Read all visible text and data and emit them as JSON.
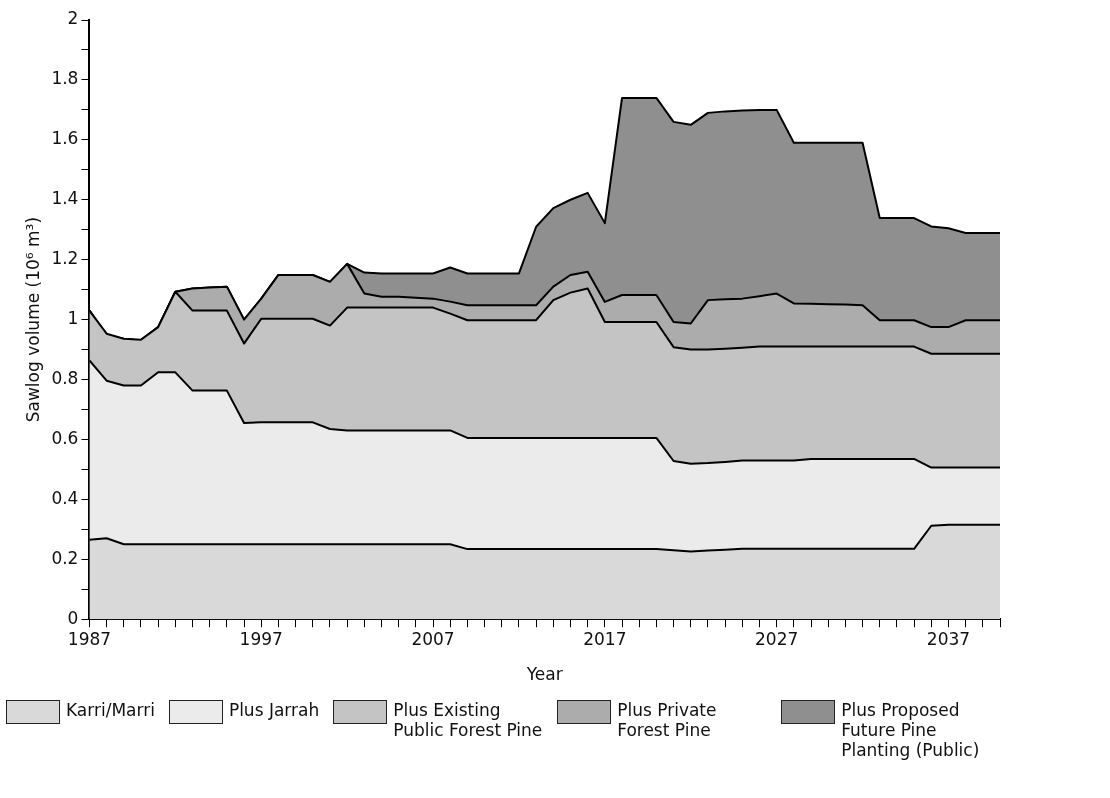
{
  "chart_data": {
    "type": "area",
    "xlabel": "Year",
    "ylabel": "Sawlog volume (10⁶ m³)",
    "x": [
      1987,
      1988,
      1989,
      1990,
      1991,
      1992,
      1993,
      1994,
      1995,
      1996,
      1997,
      1998,
      1999,
      2000,
      2001,
      2002,
      2003,
      2004,
      2005,
      2006,
      2007,
      2008,
      2009,
      2010,
      2011,
      2012,
      2013,
      2014,
      2015,
      2016,
      2017,
      2018,
      2019,
      2020,
      2021,
      2022,
      2023,
      2024,
      2025,
      2026,
      2027,
      2028,
      2029,
      2030,
      2031,
      2032,
      2033,
      2034,
      2035,
      2036,
      2037,
      2038,
      2039,
      2040
    ],
    "series": [
      {
        "name": "Karri/Marri",
        "color": "#d9d9d9",
        "values": [
          0.265,
          0.27,
          0.25,
          0.25,
          0.25,
          0.25,
          0.25,
          0.25,
          0.25,
          0.25,
          0.25,
          0.25,
          0.25,
          0.25,
          0.25,
          0.25,
          0.25,
          0.25,
          0.25,
          0.25,
          0.25,
          0.25,
          0.234,
          0.234,
          0.234,
          0.234,
          0.234,
          0.234,
          0.234,
          0.234,
          0.234,
          0.234,
          0.234,
          0.234,
          0.23,
          0.226,
          0.229,
          0.232,
          0.235,
          0.235,
          0.235,
          0.235,
          0.235,
          0.235,
          0.235,
          0.235,
          0.235,
          0.235,
          0.235,
          0.312,
          0.315,
          0.315,
          0.315,
          0.315
        ]
      },
      {
        "name": "Plus Jarrah",
        "color": "#ebebeb",
        "values": [
          0.864,
          0.796,
          0.78,
          0.78,
          0.824,
          0.824,
          0.763,
          0.763,
          0.763,
          0.655,
          0.657,
          0.657,
          0.657,
          0.657,
          0.635,
          0.63,
          0.63,
          0.63,
          0.63,
          0.63,
          0.63,
          0.63,
          0.605,
          0.605,
          0.605,
          0.605,
          0.605,
          0.605,
          0.605,
          0.605,
          0.605,
          0.605,
          0.605,
          0.605,
          0.528,
          0.519,
          0.521,
          0.525,
          0.53,
          0.53,
          0.53,
          0.53,
          0.535,
          0.535,
          0.535,
          0.535,
          0.535,
          0.535,
          0.535,
          0.506,
          0.506,
          0.506,
          0.506,
          0.506
        ]
      },
      {
        "name": "Plus Existing Public Forest Pine",
        "color": "#c4c4c4",
        "values": [
          1.03,
          0.953,
          0.936,
          0.933,
          0.975,
          1.093,
          1.03,
          1.03,
          1.03,
          0.92,
          1.003,
          1.003,
          1.003,
          1.003,
          0.98,
          1.04,
          1.04,
          1.04,
          1.04,
          1.04,
          1.04,
          1.02,
          0.998,
          0.998,
          0.998,
          0.998,
          0.998,
          1.065,
          1.09,
          1.104,
          0.992,
          0.992,
          0.992,
          0.992,
          0.908,
          0.9,
          0.9,
          0.903,
          0.906,
          0.91,
          0.91,
          0.91,
          0.91,
          0.91,
          0.91,
          0.91,
          0.91,
          0.91,
          0.91,
          0.886,
          0.886,
          0.886,
          0.886,
          0.886
        ]
      },
      {
        "name": "Plus Private Forest Pine",
        "color": "#acacac",
        "values": [
          1.03,
          0.947,
          0.935,
          0.93,
          0.975,
          1.093,
          1.104,
          1.107,
          1.11,
          1.0,
          1.07,
          1.149,
          1.149,
          1.149,
          1.126,
          1.186,
          1.087,
          1.076,
          1.076,
          1.073,
          1.07,
          1.06,
          1.048,
          1.048,
          1.048,
          1.048,
          1.048,
          1.11,
          1.149,
          1.16,
          1.059,
          1.082,
          1.082,
          1.082,
          0.992,
          0.987,
          1.065,
          1.068,
          1.07,
          1.078,
          1.087,
          1.054,
          1.053,
          1.051,
          1.05,
          1.048,
          0.998,
          0.998,
          0.998,
          0.975,
          0.975,
          0.998,
          0.998,
          0.998
        ]
      },
      {
        "name": "Plus Proposed Future Pine Planting (Public)",
        "color": "#8f8f8f",
        "values": [
          1.03,
          0.947,
          0.935,
          0.93,
          0.975,
          1.093,
          1.104,
          1.107,
          1.11,
          1.0,
          1.07,
          1.149,
          1.149,
          1.149,
          1.126,
          1.186,
          1.157,
          1.154,
          1.154,
          1.154,
          1.154,
          1.174,
          1.154,
          1.154,
          1.154,
          1.154,
          1.31,
          1.372,
          1.4,
          1.423,
          1.322,
          1.74,
          1.74,
          1.74,
          1.66,
          1.65,
          1.69,
          1.695,
          1.698,
          1.7,
          1.7,
          1.59,
          1.59,
          1.59,
          1.59,
          1.59,
          1.339,
          1.339,
          1.339,
          1.311,
          1.305,
          1.289,
          1.289,
          1.289
        ]
      }
    ],
    "xlim": [
      1987,
      2040
    ],
    "xticks": [
      1987,
      {
        "value": 1988,
        "label": null
      },
      {
        "value": 1989,
        "label": null
      },
      {
        "value": 1990,
        "label": null
      },
      {
        "value": 1991,
        "label": null
      },
      {
        "value": 1992,
        "label": null
      },
      {
        "value": 1993,
        "label": null
      },
      {
        "value": 1994,
        "label": null
      },
      {
        "value": 1995,
        "label": null
      },
      {
        "value": 1996,
        "label": null
      },
      1997,
      {
        "value": 1998,
        "label": null
      },
      {
        "value": 1999,
        "label": null
      },
      {
        "value": 2000,
        "label": null
      },
      {
        "value": 2001,
        "label": null
      },
      {
        "value": 2002,
        "label": null
      },
      {
        "value": 2003,
        "label": null
      },
      {
        "value": 2004,
        "label": null
      },
      {
        "value": 2005,
        "label": null
      },
      {
        "value": 2006,
        "label": null
      },
      2007,
      {
        "value": 2008,
        "label": null
      },
      {
        "value": 2009,
        "label": null
      },
      {
        "value": 2010,
        "label": null
      },
      {
        "value": 2011,
        "label": null
      },
      {
        "value": 2012,
        "label": null
      },
      {
        "value": 2013,
        "label": null
      },
      {
        "value": 2014,
        "label": null
      },
      {
        "value": 2015,
        "label": null
      },
      {
        "value": 2016,
        "label": null
      },
      2017,
      {
        "value": 2018,
        "label": null
      },
      {
        "value": 2019,
        "label": null
      },
      {
        "value": 2020,
        "label": null
      },
      {
        "value": 2021,
        "label": null
      },
      {
        "value": 2022,
        "label": null
      },
      {
        "value": 2023,
        "label": null
      },
      {
        "value": 2024,
        "label": null
      },
      {
        "value": 2025,
        "label": null
      },
      {
        "value": 2026,
        "label": null
      },
      2027,
      {
        "value": 2028,
        "label": null
      },
      {
        "value": 2029,
        "label": null
      },
      {
        "value": 2030,
        "label": null
      },
      {
        "value": 2031,
        "label": null
      },
      {
        "value": 2032,
        "label": null
      },
      {
        "value": 2033,
        "label": null
      },
      {
        "value": 2034,
        "label": null
      },
      {
        "value": 2035,
        "label": null
      },
      {
        "value": 2036,
        "label": null
      },
      2037,
      {
        "value": 2038,
        "label": null
      },
      {
        "value": 2039,
        "label": null
      },
      {
        "value": 2040,
        "label": null
      }
    ],
    "ylim": [
      0,
      2
    ],
    "yticks": [
      0,
      {
        "value": 0.1,
        "label": null
      },
      0.2,
      {
        "value": 0.3,
        "label": null
      },
      0.4,
      {
        "value": 0.5,
        "label": null
      },
      0.6,
      {
        "value": 0.7,
        "label": null
      },
      0.8,
      {
        "value": 0.9,
        "label": null
      },
      1,
      {
        "value": 1.1,
        "label": null
      },
      1.2,
      {
        "value": 1.3,
        "label": null
      },
      1.4,
      {
        "value": 1.5,
        "label": null
      },
      1.6,
      {
        "value": 1.7,
        "label": null
      },
      1.8,
      {
        "value": 1.9,
        "label": null
      },
      2
    ],
    "grid": false,
    "legend": "bottom"
  }
}
